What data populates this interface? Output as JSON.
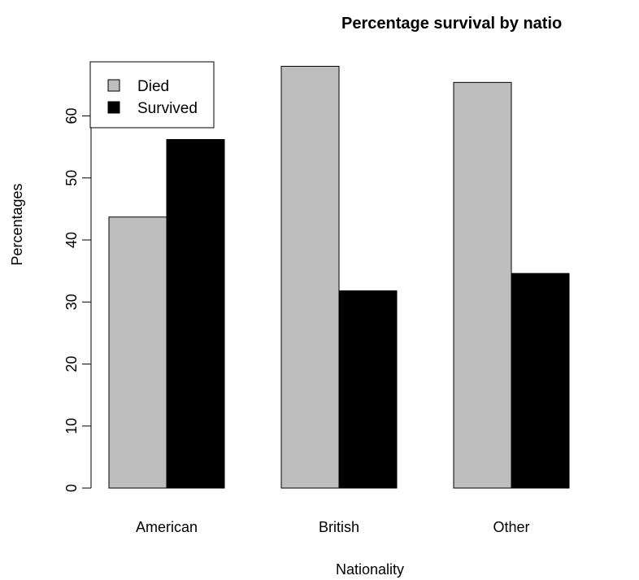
{
  "chart_data": {
    "type": "bar",
    "title": "Percentage survival by natio",
    "xlabel": "Nationality",
    "ylabel": "Percentages",
    "categories": [
      "American",
      "British",
      "Other"
    ],
    "series": [
      {
        "name": "Died",
        "values": [
          43.7,
          68.0,
          65.4
        ],
        "color": "#bebebe"
      },
      {
        "name": "Survived",
        "values": [
          56.2,
          31.8,
          34.6
        ],
        "color": "#000000"
      }
    ],
    "ylim": [
      0,
      68
    ],
    "y_ticks": [
      0,
      10,
      20,
      30,
      40,
      50,
      60
    ],
    "y_tick_labels": [
      "0",
      "10",
      "20",
      "30",
      "40",
      "50",
      "60"
    ],
    "grid": false,
    "legend_position": "top-left"
  }
}
